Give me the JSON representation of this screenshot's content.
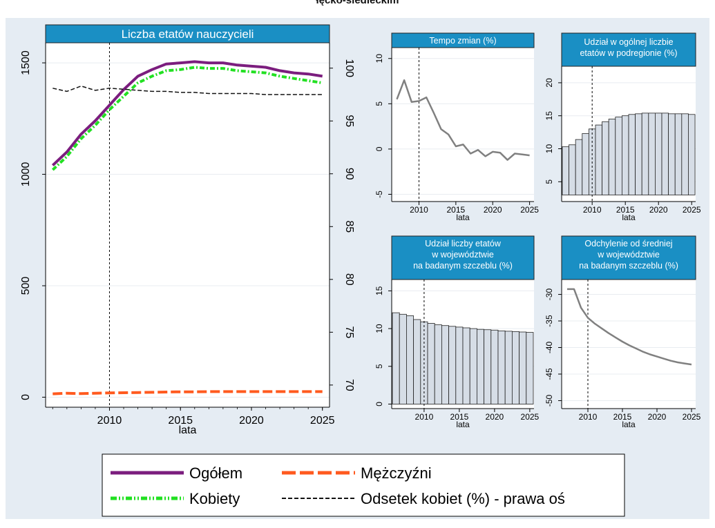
{
  "page": {
    "title_fragment": "łęcko-siedleckim"
  },
  "colors": {
    "panel_bg": "#e5ecf3",
    "plot_bg": "#ffffff",
    "header_bg": "#1a8fc4",
    "grid": "#e8ecf0",
    "ogolem": "#7b1d7e",
    "kobiety": "#22e022",
    "mezczyzni": "#ff5a1f",
    "odsetek": "#111111",
    "small_line": "#808080",
    "bar_fill": "#d6dde6",
    "bar_stroke": "#222222"
  },
  "chart_data": [
    {
      "type": "line",
      "title": "Liczba etatów nauczycieli",
      "xlabel": "lata",
      "xlim": [
        2005.5,
        2025.5
      ],
      "xticks": [
        2010,
        2015,
        2020,
        2025
      ],
      "ylim": [
        -45,
        1590
      ],
      "yticks": [
        0,
        500,
        1000,
        1500
      ],
      "y2lim": [
        67.9,
        102.4
      ],
      "y2ticks": [
        70,
        75,
        80,
        85,
        90,
        95,
        100
      ],
      "vline": 2010,
      "x": [
        2006,
        2007,
        2008,
        2009,
        2010,
        2011,
        2012,
        2013,
        2014,
        2015,
        2016,
        2017,
        2018,
        2019,
        2020,
        2021,
        2022,
        2023,
        2024,
        2025
      ],
      "series": [
        {
          "name": "Ogółem",
          "axis": "left",
          "style": "solid",
          "color_key": "ogolem",
          "values": [
            1040,
            1100,
            1180,
            1240,
            1310,
            1380,
            1440,
            1470,
            1495,
            1500,
            1505,
            1500,
            1500,
            1490,
            1485,
            1480,
            1465,
            1455,
            1450,
            1440
          ]
        },
        {
          "name": "Kobiety",
          "axis": "left",
          "style": "dashdot",
          "color_key": "kobiety",
          "values": [
            1020,
            1080,
            1160,
            1220,
            1290,
            1350,
            1410,
            1440,
            1465,
            1470,
            1480,
            1475,
            1475,
            1465,
            1460,
            1455,
            1440,
            1430,
            1420,
            1410
          ]
        },
        {
          "name": "Mężczyźni",
          "axis": "left",
          "style": "longdash",
          "color_key": "mezczyzni",
          "values": [
            15,
            18,
            16,
            18,
            19,
            20,
            21,
            22,
            23,
            24,
            24,
            25,
            25,
            25,
            25,
            25,
            25,
            25,
            25,
            25
          ]
        },
        {
          "name": "Odsetek kobiet (%) - prawa oś",
          "axis": "right",
          "style": "dash",
          "color_key": "odsetek",
          "values": [
            98.1,
            97.8,
            98.3,
            97.9,
            98.1,
            98.0,
            97.9,
            97.8,
            97.8,
            97.7,
            97.7,
            97.6,
            97.6,
            97.6,
            97.6,
            97.5,
            97.5,
            97.5,
            97.5,
            97.5
          ]
        }
      ]
    },
    {
      "type": "line",
      "title": "Tempo zmian (%)",
      "xlabel": "lata",
      "xlim": [
        2006.3,
        2025.6
      ],
      "xticks": [
        2010,
        2015,
        2020,
        2025
      ],
      "ylim": [
        -5.8,
        11.2
      ],
      "yticks": [
        -5,
        0,
        5,
        10
      ],
      "vline": 2010,
      "x": [
        2007,
        2008,
        2009,
        2010,
        2011,
        2012,
        2013,
        2014,
        2015,
        2016,
        2017,
        2018,
        2019,
        2020,
        2021,
        2022,
        2023,
        2024,
        2025
      ],
      "values": [
        5.5,
        7.6,
        5.2,
        5.3,
        5.7,
        4.0,
        2.2,
        1.6,
        0.3,
        0.5,
        -0.5,
        -0.1,
        -0.8,
        -0.3,
        -0.4,
        -1.2,
        -0.5,
        -0.6,
        -0.7
      ]
    },
    {
      "type": "bar",
      "title": "Udział w ogólnej liczbie etatów w podregionie (%)",
      "xlabel": "lata",
      "xlim": [
        2005.4,
        2025.6
      ],
      "xticks": [
        2010,
        2015,
        2020,
        2025
      ],
      "ylim": [
        2,
        22.5
      ],
      "yticks": [
        5,
        10,
        15,
        20
      ],
      "bar_base": 3,
      "vline": 2010,
      "x": [
        2006,
        2007,
        2008,
        2009,
        2010,
        2011,
        2012,
        2013,
        2014,
        2015,
        2016,
        2017,
        2018,
        2019,
        2020,
        2021,
        2022,
        2023,
        2024,
        2025
      ],
      "values": [
        10.3,
        10.6,
        11.4,
        12.3,
        13.0,
        13.6,
        14.1,
        14.5,
        14.8,
        15.0,
        15.2,
        15.3,
        15.4,
        15.4,
        15.4,
        15.4,
        15.3,
        15.3,
        15.3,
        15.2
      ]
    },
    {
      "type": "bar",
      "title": "Udział liczby etatów w województwie na badanym szczeblu (%)",
      "xlabel": "lata",
      "xlim": [
        2005.4,
        2025.6
      ],
      "xticks": [
        2010,
        2015,
        2020,
        2025
      ],
      "ylim": [
        -0.6,
        16.5
      ],
      "yticks": [
        0,
        5,
        10,
        15
      ],
      "bar_base": 0,
      "vline": 2010,
      "x": [
        2006,
        2007,
        2008,
        2009,
        2010,
        2011,
        2012,
        2013,
        2014,
        2015,
        2016,
        2017,
        2018,
        2019,
        2020,
        2021,
        2022,
        2023,
        2024,
        2025
      ],
      "values": [
        12.1,
        11.9,
        11.7,
        11.2,
        10.9,
        10.7,
        10.5,
        10.4,
        10.3,
        10.2,
        10.1,
        10.0,
        9.9,
        9.85,
        9.8,
        9.7,
        9.65,
        9.6,
        9.55,
        9.5
      ]
    },
    {
      "type": "line",
      "title": "Odchylenie od średniej w województwie na badanym szczeblu (%)",
      "xlabel": "lata",
      "xlim": [
        2006.2,
        2025.6
      ],
      "xticks": [
        2010,
        2015,
        2020,
        2025
      ],
      "ylim": [
        -51.5,
        -27.2
      ],
      "yticks": [
        -50,
        -45,
        -40,
        -35,
        -30
      ],
      "vline": 2010,
      "x": [
        2007,
        2008,
        2009,
        2010,
        2011,
        2012,
        2013,
        2014,
        2015,
        2016,
        2017,
        2018,
        2019,
        2020,
        2021,
        2022,
        2023,
        2024,
        2025
      ],
      "values": [
        -29.0,
        -29.0,
        -32.5,
        -34.4,
        -35.5,
        -36.4,
        -37.3,
        -38.1,
        -38.9,
        -39.6,
        -40.2,
        -40.8,
        -41.3,
        -41.7,
        -42.1,
        -42.5,
        -42.8,
        -43.0,
        -43.2
      ]
    }
  ],
  "legend": {
    "items": [
      {
        "label": "Ogółem",
        "series_index": 0
      },
      {
        "label": "Mężczyźni",
        "series_index": 2
      },
      {
        "label": "Kobiety",
        "series_index": 1
      },
      {
        "label": "Odsetek kobiet (%) - prawa oś",
        "series_index": 3
      }
    ]
  }
}
